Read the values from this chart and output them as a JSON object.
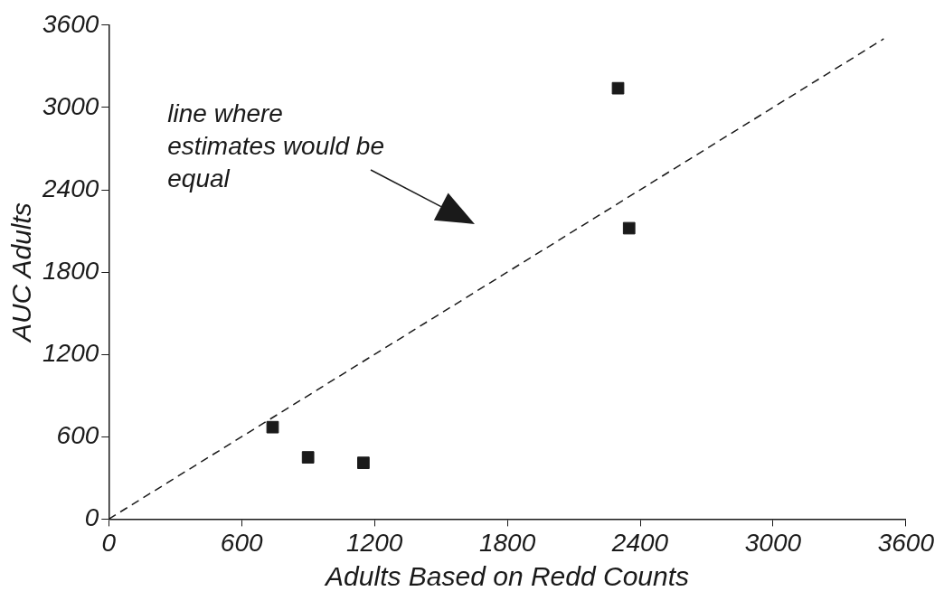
{
  "chart_data": {
    "type": "scatter",
    "xlabel": "Adults Based on Redd Counts",
    "ylabel": "AUC Adults",
    "xlim": [
      0,
      3600
    ],
    "xticks": [
      0,
      600,
      1200,
      1800,
      2400,
      3000,
      3600
    ],
    "ylim": [
      0,
      3600
    ],
    "yticks": [
      0,
      600,
      1200,
      1800,
      2400,
      3000,
      3600
    ],
    "grid": false,
    "legend": false,
    "marker": "square",
    "series": [
      {
        "color": "#1a1a1a",
        "x": [
          740,
          900,
          1150,
          2300,
          2350
        ],
        "values": [
          670,
          450,
          410,
          3140,
          2120
        ]
      },
      {
        "type": "line",
        "color": "#1a1a1a",
        "x": [
          0,
          3500
        ],
        "values": [
          0,
          3500
        ],
        "marker": "none",
        "line_style": "dashed"
      }
    ],
    "annotations": [
      "line where estimates would be equal"
    ]
  }
}
